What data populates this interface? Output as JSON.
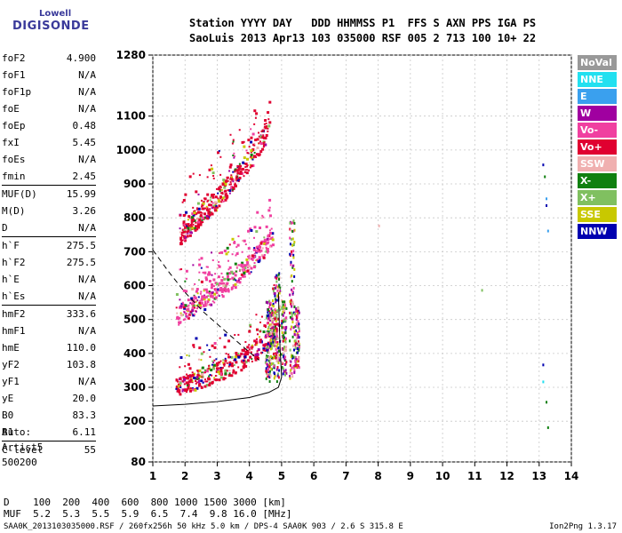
{
  "logo": {
    "line1": "Lowell",
    "line2": "DIGISONDE"
  },
  "header": {
    "line1": "Station YYYY DAY   DDD HHMMSS P1  FFS S AXN PPS IGA PS",
    "line2": "SaoLuis 2013 Apr13 103 035000 RSF 005 2 713 100 10+ 22"
  },
  "params": [
    {
      "k": "foF2",
      "v": "4.900"
    },
    {
      "k": "foF1",
      "v": "N/A"
    },
    {
      "k": "foF1p",
      "v": "N/A"
    },
    {
      "k": "foE",
      "v": "N/A"
    },
    {
      "k": "foEp",
      "v": "0.48"
    },
    {
      "k": "fxI",
      "v": "5.45"
    },
    {
      "k": "foEs",
      "v": "N/A"
    },
    {
      "k": "fmin",
      "v": "2.45"
    },
    {
      "k": "MUF(D)",
      "v": "15.99",
      "sep": true
    },
    {
      "k": "M(D)",
      "v": "3.26"
    },
    {
      "k": "D",
      "v": "N/A"
    },
    {
      "k": "h`F",
      "v": "275.5",
      "sep": true
    },
    {
      "k": "h`F2",
      "v": "275.5"
    },
    {
      "k": "h`E",
      "v": "N/A"
    },
    {
      "k": "h`Es",
      "v": "N/A"
    },
    {
      "k": "hmF2",
      "v": "333.6",
      "sep": true
    },
    {
      "k": "hmF1",
      "v": "N/A"
    },
    {
      "k": "hmE",
      "v": "110.0"
    },
    {
      "k": "yF2",
      "v": "103.8"
    },
    {
      "k": "yF1",
      "v": "N/A"
    },
    {
      "k": "yE",
      "v": "20.0"
    },
    {
      "k": "B0",
      "v": "83.3"
    },
    {
      "k": "B1",
      "v": "6.11"
    },
    {
      "k": "C-level",
      "v": "55",
      "sep": true
    }
  ],
  "auto": {
    "line1": "Auto:",
    "line2": "Artist5",
    "line3": "500200"
  },
  "legend": [
    {
      "label": "NoVal",
      "color": "#999999"
    },
    {
      "label": "NNE",
      "color": "#22e0f0"
    },
    {
      "label": "E",
      "color": "#3aa0ee"
    },
    {
      "label": "W",
      "color": "#a000a0"
    },
    {
      "label": "Vo-",
      "color": "#f040a0"
    },
    {
      "label": "Vo+",
      "color": "#e00030"
    },
    {
      "label": "SSW",
      "color": "#f0b0b0"
    },
    {
      "label": "X-",
      "color": "#108010"
    },
    {
      "label": "X+",
      "color": "#80c060"
    },
    {
      "label": "SSE",
      "color": "#c8c800"
    },
    {
      "label": "NNW",
      "color": "#0000b0"
    }
  ],
  "chart_data": {
    "type": "scatter",
    "xlim": [
      1,
      14
    ],
    "ylim": [
      80,
      1280
    ],
    "x_ticks": [
      "1",
      "2",
      "3",
      "4",
      "5",
      "6",
      "7",
      "8",
      "9",
      "10",
      "11",
      "12",
      "13",
      "14"
    ],
    "y_ticks": [
      "80",
      "200",
      "300",
      "400",
      "500",
      "600",
      "700",
      "800",
      "900",
      "1000",
      "1100",
      "1280"
    ],
    "y_tick_values": [
      80,
      200,
      300,
      400,
      500,
      600,
      700,
      800,
      900,
      1000,
      1100,
      1280
    ],
    "grid": true,
    "traces": [
      {
        "name": "O-trace 1",
        "start": [
          1.7,
          300
        ],
        "end": [
          4.85,
          415
        ],
        "color": "#e00030"
      },
      {
        "name": "O-trace 2",
        "start": [
          1.7,
          510
        ],
        "end": [
          4.7,
          690
        ],
        "color": "#f040a0"
      },
      {
        "name": "O-trace 3",
        "start": [
          1.8,
          750
        ],
        "end": [
          4.6,
          1010
        ],
        "color": "#e00030"
      }
    ],
    "profile_solid": [
      [
        1,
        245
      ],
      [
        2,
        250
      ],
      [
        3,
        258
      ],
      [
        4,
        270
      ],
      [
        4.6,
        285
      ],
      [
        4.9,
        300
      ],
      [
        5.0,
        330
      ],
      [
        4.95,
        420
      ],
      [
        4.9,
        580
      ]
    ],
    "profile_dashed": [
      [
        1,
        705
      ],
      [
        1.5,
        640
      ],
      [
        2,
        580
      ],
      [
        2.6,
        520
      ],
      [
        3.2,
        470
      ],
      [
        3.8,
        420
      ],
      [
        4.3,
        380
      ]
    ],
    "isolated_points": [
      {
        "x": 13.1,
        "y": 960,
        "color": "#0000b0"
      },
      {
        "x": 13.15,
        "y": 925,
        "color": "#108010"
      },
      {
        "x": 13.2,
        "y": 860,
        "color": "#3aa0ee"
      },
      {
        "x": 13.2,
        "y": 840,
        "color": "#0000b0"
      },
      {
        "x": 13.25,
        "y": 765,
        "color": "#3aa0ee"
      },
      {
        "x": 13.1,
        "y": 370,
        "color": "#0000b0"
      },
      {
        "x": 13.1,
        "y": 320,
        "color": "#22e0f0"
      },
      {
        "x": 13.2,
        "y": 260,
        "color": "#108010"
      },
      {
        "x": 13.25,
        "y": 185,
        "color": "#108010"
      },
      {
        "x": 11.2,
        "y": 590,
        "color": "#80c060"
      },
      {
        "x": 8.0,
        "y": 780,
        "color": "#f0b0b0"
      }
    ]
  },
  "bottom": {
    "line1": "D    100  200  400  600  800 1000 1500 3000 [km]",
    "line2": "MUF  5.2  5.3  5.5  5.9  6.5  7.4  9.8 16.0 [MHz]"
  },
  "footer": "SAA0K_2013103035000.RSF / 260fx256h 50 kHz 5.0 km / DPS-4 SAA0K 903 / 2.6 S 315.8 E",
  "version": "Ion2Png 1.3.17"
}
